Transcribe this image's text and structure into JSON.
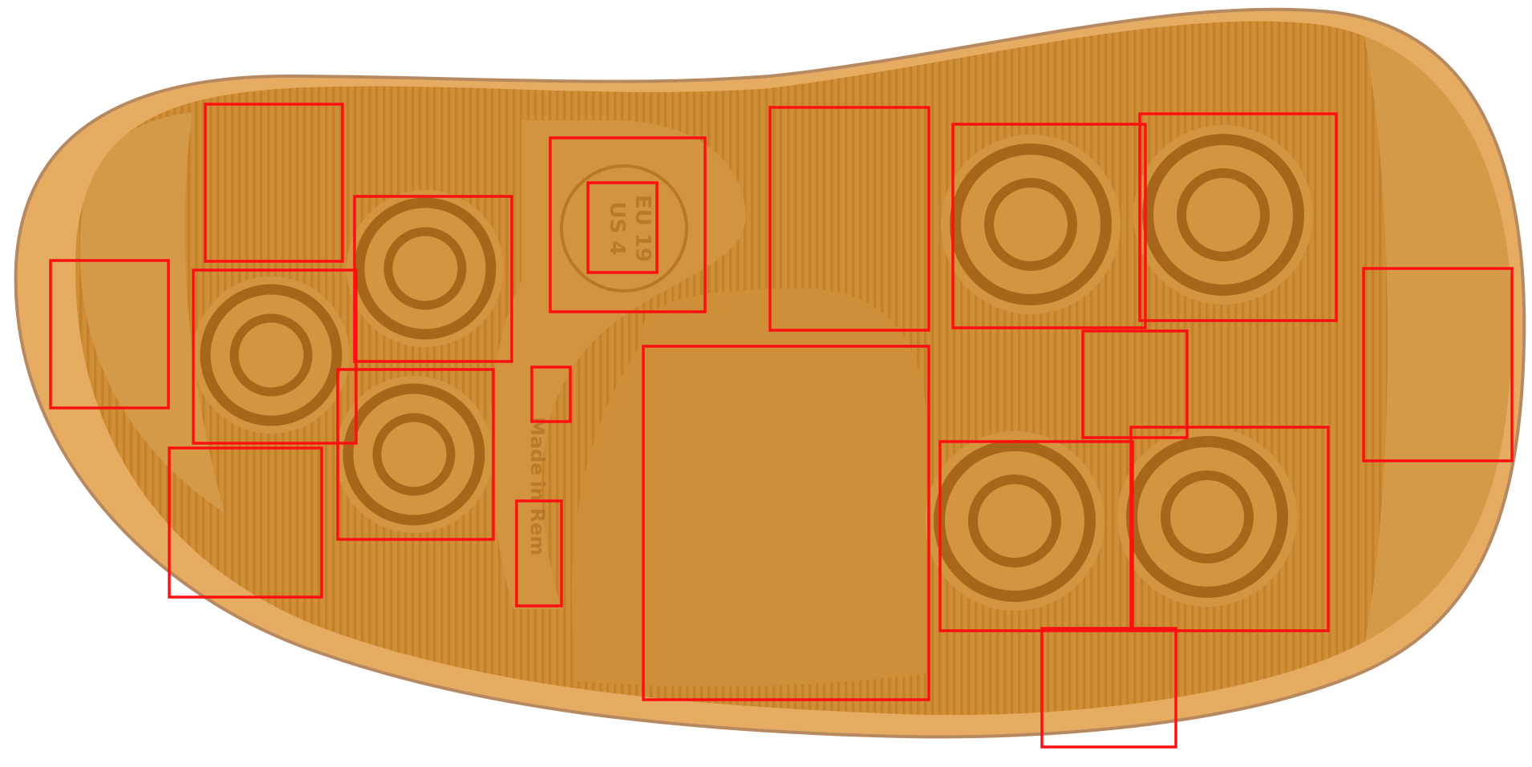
{
  "image": {
    "subject": "shoe-sole",
    "sole_color": "#d4953d",
    "sole_edge_color": "#e9b36d",
    "ridge_color": "#b8761f",
    "groove_color": "#a8661a",
    "annotation_color": "#ff1010"
  },
  "sole_markings": {
    "size_line_1": "EU 19",
    "size_line_2": "US 4",
    "brand_line_1": "Made",
    "brand_line_2": "in Rem"
  },
  "annotation_boxes": {
    "count": 19
  }
}
